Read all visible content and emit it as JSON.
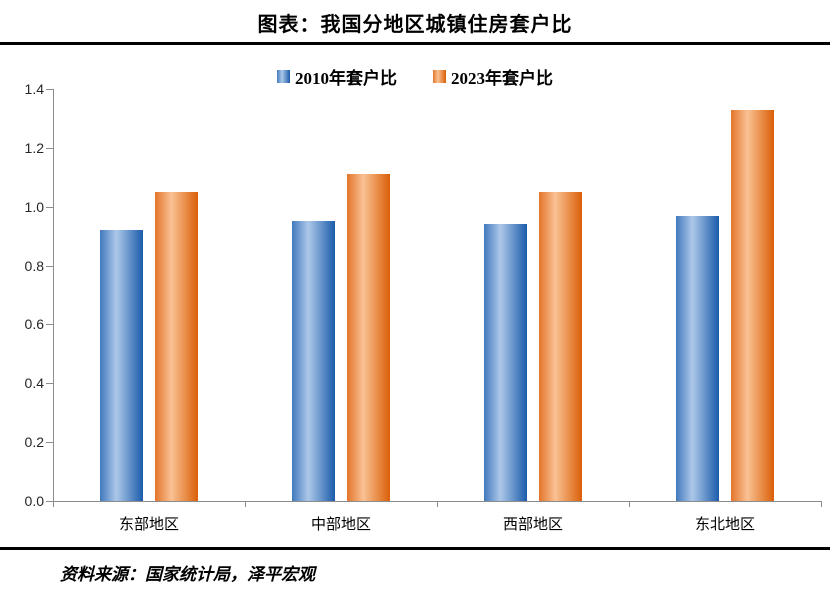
{
  "header": {
    "title": "图表：我国分地区城镇住房套户比"
  },
  "footer": {
    "source": "资料来源：国家统计局，泽平宏观"
  },
  "colors": {
    "series_2010": "#4F81BD",
    "series_2023": "#F79646",
    "gradient_2010": [
      "#4279BE",
      "#ACC8E8",
      "#1C5CAC"
    ],
    "gradient_2023": [
      "#E4752A",
      "#F9C193",
      "#DA5F08"
    ],
    "axis": "#8C8C8C",
    "rule": "#000000",
    "text": "#000000"
  },
  "chart_data": {
    "type": "bar",
    "title": "图表：我国分地区城镇住房套户比",
    "categories": [
      "东部地区",
      "中部地区",
      "西部地区",
      "东北地区"
    ],
    "series": [
      {
        "key": "2010",
        "name": "2010年套户比",
        "values": [
          0.92,
          0.95,
          0.94,
          0.97
        ]
      },
      {
        "key": "2023",
        "name": "2023年套户比",
        "values": [
          1.05,
          1.11,
          1.05,
          1.33
        ]
      }
    ],
    "xlabel": "",
    "ylabel": "",
    "ylim": [
      0,
      1.4
    ],
    "y_ticks": [
      "0.0",
      "0.2",
      "0.4",
      "0.6",
      "0.8",
      "1.0",
      "1.2",
      "1.4"
    ],
    "grid": false,
    "legend_position": "top-center",
    "source": "资料来源：国家统计局，泽平宏观"
  }
}
